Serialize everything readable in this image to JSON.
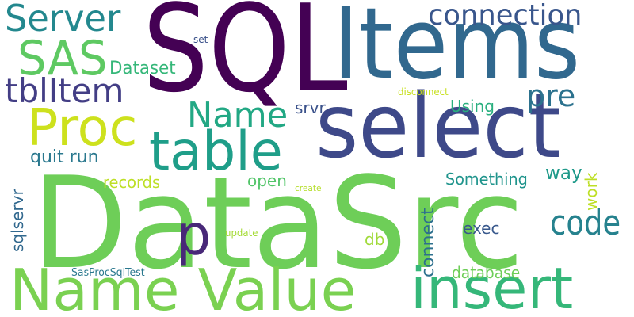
{
  "words": [
    {
      "text": "SQL",
      "color": "#440154"
    },
    {
      "text": "Items",
      "color": "#31688e"
    },
    {
      "text": "DataSrc",
      "color": "#6ece58"
    },
    {
      "text": "select",
      "color": "#3e4989"
    },
    {
      "text": "Name Value",
      "color": "#7ad151"
    },
    {
      "text": "insert",
      "color": "#35b779"
    },
    {
      "text": "Proc",
      "color": "#cde11d"
    },
    {
      "text": "table",
      "color": "#1f9e89"
    },
    {
      "text": "Server",
      "color": "#23888e"
    },
    {
      "text": "SAS",
      "color": "#5ec962"
    },
    {
      "text": "connection",
      "color": "#39568c"
    },
    {
      "text": "tblItem",
      "color": "#433e85"
    },
    {
      "text": "Name",
      "color": "#22a884"
    },
    {
      "text": "pre",
      "color": "#2c728e"
    },
    {
      "text": "p",
      "color": "#482878"
    },
    {
      "text": "code",
      "color": "#26828e"
    },
    {
      "text": "Dataset",
      "color": "#35b779"
    },
    {
      "text": "quit run",
      "color": "#2a788e"
    },
    {
      "text": "srvr",
      "color": "#3b528b"
    },
    {
      "text": "Using",
      "color": "#29af7f"
    },
    {
      "text": "records",
      "color": "#bddf26"
    },
    {
      "text": "open",
      "color": "#52c569"
    },
    {
      "text": "Something",
      "color": "#1f948c"
    },
    {
      "text": "way",
      "color": "#1f9a8a"
    },
    {
      "text": "work",
      "color": "#bddf26"
    },
    {
      "text": "exec",
      "color": "#38588c"
    },
    {
      "text": "db",
      "color": "#a0da39"
    },
    {
      "text": "connect",
      "color": "#2d708e"
    },
    {
      "text": "database",
      "color": "#6ece58"
    },
    {
      "text": "sqlservr",
      "color": "#31688e"
    },
    {
      "text": "disconnect",
      "color": "#c8e020"
    },
    {
      "text": "create",
      "color": "#b5de2b"
    },
    {
      "text": "set",
      "color": "#3b528b"
    },
    {
      "text": "update",
      "color": "#a5db36"
    },
    {
      "text": "SasProcSqlTest",
      "color": "#2a788e"
    }
  ]
}
